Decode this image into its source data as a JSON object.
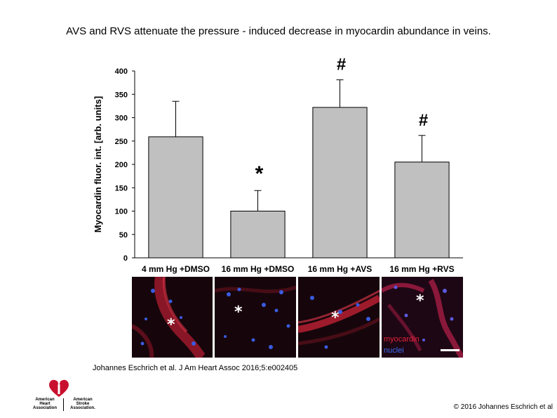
{
  "slide": {
    "title": "AVS and RVS attenuate the pressure - induced decrease in myocardin abundance in veins.",
    "citation": "Johannes Eschrich et al. J Am Heart Assoc 2016;5:e002405",
    "copyright": "© 2016 Johannes Eschrich et al"
  },
  "logo": {
    "left_text": "American\nHeart\nAssociation",
    "right_text": "American\nStroke\nAssociation."
  },
  "chart_data": {
    "type": "bar",
    "categories": [
      "4 mm Hg +DMSO",
      "16 mm Hg +DMSO",
      "16 mm Hg +AVS",
      "16 mm Hg +RVS"
    ],
    "values": [
      259,
      100,
      322,
      205
    ],
    "error_upper": [
      335,
      144,
      381,
      262
    ],
    "annotations": [
      "",
      "*",
      "#",
      "#"
    ],
    "ylabel": "Myocardin fluor. int. [arb. units]",
    "ylim": [
      0,
      400
    ],
    "yticks": [
      "0",
      "50",
      "100",
      "150",
      "200",
      "250",
      "300",
      "350",
      "400"
    ],
    "grid": false,
    "bar_color": "#c0c0c0",
    "bar_edge_color": "#000000"
  },
  "micrographs": {
    "panel_markers": [
      "*",
      "*",
      "*",
      "*"
    ],
    "legend": {
      "myocardin": "myocardin",
      "nuclei": "nuclei",
      "myocardin_color": "#e2233a",
      "nuclei_color": "#3a6cf0"
    }
  }
}
